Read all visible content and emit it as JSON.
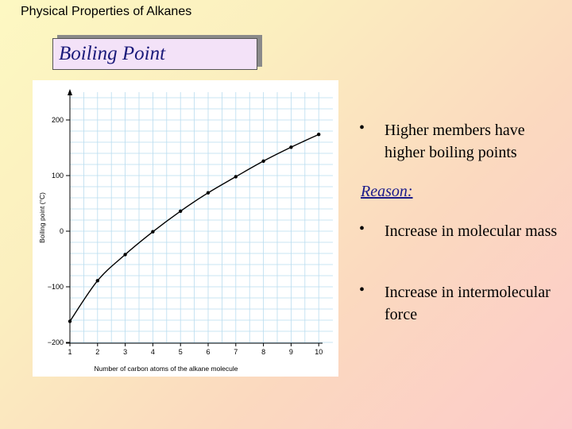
{
  "slide": {
    "title": "Physical Properties of Alkanes",
    "heading": "Boiling Point",
    "bullets_top": [
      "Higher members have higher boiling points"
    ],
    "reason_label": "Reason:",
    "bullets_bottom": [
      "Increase in molecular mass",
      "Increase in intermolecular force"
    ]
  },
  "colors": {
    "grid": "#b9dcef",
    "curve": "#000000",
    "heading_text": "#1a1a7a",
    "reason_text": "#1a1a8a"
  },
  "chart_data": {
    "type": "line",
    "xlabel": "Number of carbon atoms of the alkane molecule",
    "ylabel": "Boiling point (°C)",
    "x": [
      1,
      2,
      3,
      4,
      5,
      6,
      7,
      8,
      9,
      10
    ],
    "xticks": [
      "1",
      "2",
      "3",
      "4",
      "5",
      "6",
      "7",
      "8",
      "9",
      "10"
    ],
    "yticks": [
      200,
      100,
      0,
      -100,
      -200
    ],
    "ytick_labels": [
      "200",
      "100",
      "0",
      "−100",
      "−200"
    ],
    "series": [
      {
        "values": [
          -162,
          -89,
          -42,
          -1,
          36,
          69,
          98,
          126,
          151,
          174
        ]
      }
    ],
    "xlim": [
      1,
      10
    ],
    "ylim": [
      -200,
      200
    ],
    "grid": true
  }
}
